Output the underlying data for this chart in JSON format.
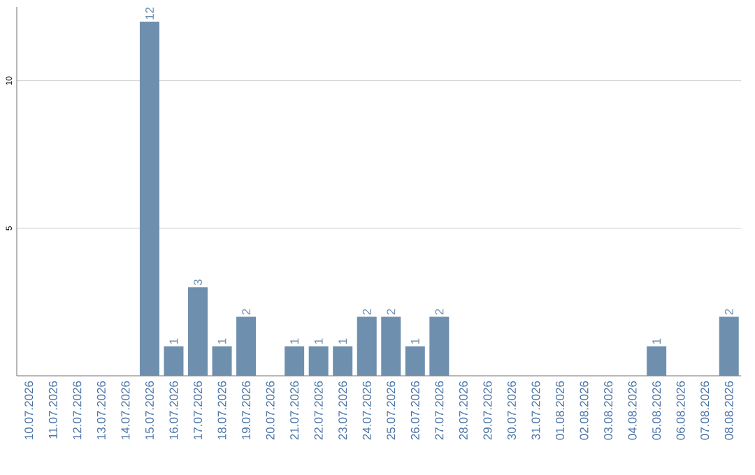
{
  "chart_data": {
    "type": "bar",
    "categories": [
      "10.07.2026",
      "11.07.2026",
      "12.07.2026",
      "13.07.2026",
      "14.07.2026",
      "15.07.2026",
      "16.07.2026",
      "17.07.2026",
      "18.07.2026",
      "19.07.2026",
      "20.07.2026",
      "21.07.2026",
      "22.07.2026",
      "23.07.2026",
      "24.07.2026",
      "25.07.2026",
      "26.07.2026",
      "27.07.2026",
      "28.07.2026",
      "29.07.2026",
      "30.07.2026",
      "31.07.2026",
      "01.08.2026",
      "02.08.2026",
      "03.08.2026",
      "04.08.2026",
      "05.08.2026",
      "06.08.2026",
      "07.08.2026",
      "08.08.2026"
    ],
    "values": [
      0,
      0,
      0,
      0,
      0,
      12,
      1,
      3,
      1,
      2,
      0,
      1,
      1,
      1,
      2,
      2,
      1,
      2,
      0,
      0,
      0,
      0,
      0,
      0,
      0,
      0,
      1,
      0,
      0,
      2
    ],
    "value_labels": [
      null,
      null,
      null,
      null,
      null,
      "12",
      "1",
      "3",
      "1",
      "2",
      null,
      "1",
      "1",
      "1",
      "2",
      "2",
      "1",
      "2",
      null,
      null,
      null,
      null,
      null,
      null,
      null,
      null,
      "1",
      null,
      null,
      "2"
    ],
    "color": "#6f8fae",
    "ylim": [
      0,
      12.5
    ],
    "yticks": [
      5,
      10
    ],
    "grid": "y"
  }
}
